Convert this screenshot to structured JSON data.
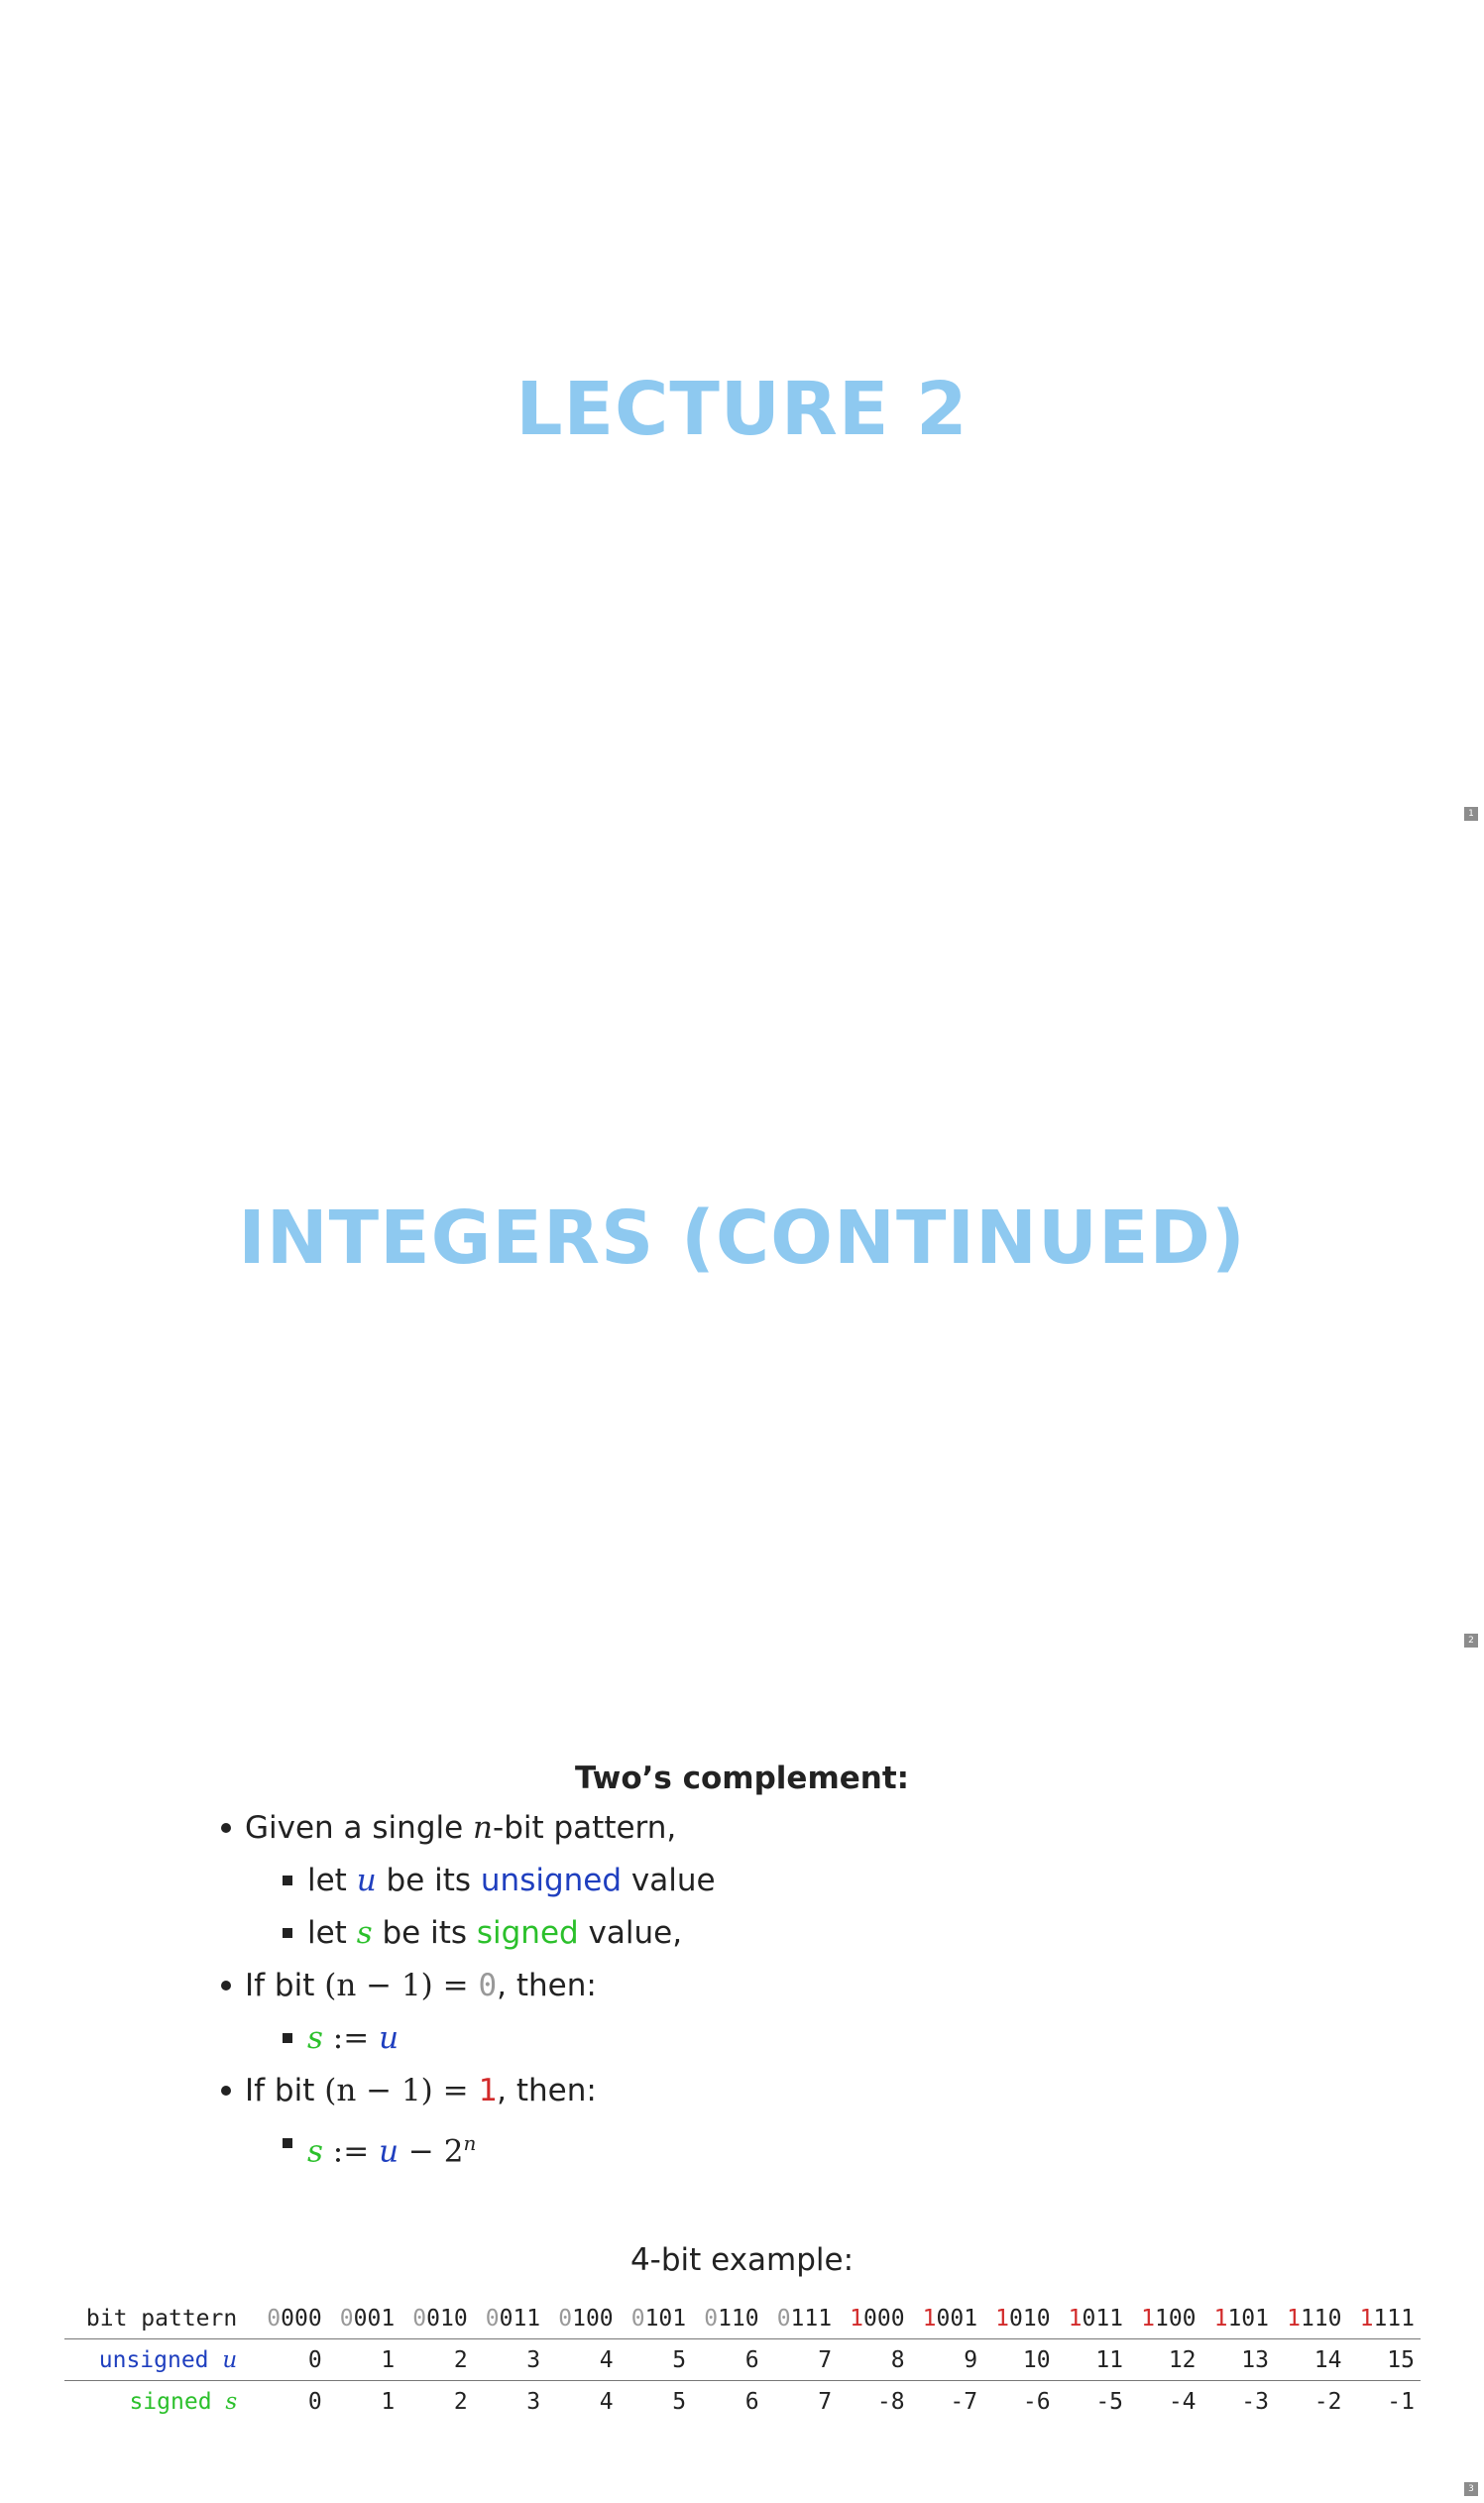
{
  "slides": [
    {
      "title": "LECTURE 2",
      "page": "1"
    },
    {
      "title": "INTEGERS (CONTINUED)",
      "page": "2"
    },
    {
      "page": "3"
    }
  ],
  "content": {
    "heading": "Two’s complement:",
    "b1_pre": "Given a single ",
    "b1_var": "n",
    "b1_post": "-bit pattern,",
    "b1a_pre": "let ",
    "b1a_var": "u",
    "b1a_mid": " be its ",
    "b1a_word": "unsigned",
    "b1a_post": " value",
    "b1b_pre": "let ",
    "b1b_var": "s",
    "b1b_mid": " be its ",
    "b1b_word": "signed",
    "b1b_post": " value,",
    "b2_pre": "If bit ",
    "b2_math": "(n − 1) = ",
    "b2_bit": "0",
    "b2_post": ", then:",
    "b2a_s": "s",
    "b2a_op": " := ",
    "b2a_u": "u",
    "b3_pre": "If bit ",
    "b3_math": "(n − 1) = ",
    "b3_bit": "1",
    "b3_post": ", then:",
    "b3a_s": "s",
    "b3a_op": " := ",
    "b3a_u": "u",
    "b3a_minus": " − 2",
    "b3a_exp": "n"
  },
  "example": {
    "title": "4-bit example:",
    "row_labels": {
      "bits": "bit pattern",
      "unsigned": "unsigned",
      "unsigned_var": "u",
      "signed": "signed",
      "signed_var": "s"
    },
    "patterns": [
      {
        "msb": "0",
        "rest": "000"
      },
      {
        "msb": "0",
        "rest": "001"
      },
      {
        "msb": "0",
        "rest": "010"
      },
      {
        "msb": "0",
        "rest": "011"
      },
      {
        "msb": "0",
        "rest": "100"
      },
      {
        "msb": "0",
        "rest": "101"
      },
      {
        "msb": "0",
        "rest": "110"
      },
      {
        "msb": "0",
        "rest": "111"
      },
      {
        "msb": "1",
        "rest": "000"
      },
      {
        "msb": "1",
        "rest": "001"
      },
      {
        "msb": "1",
        "rest": "010"
      },
      {
        "msb": "1",
        "rest": "011"
      },
      {
        "msb": "1",
        "rest": "100"
      },
      {
        "msb": "1",
        "rest": "101"
      },
      {
        "msb": "1",
        "rest": "110"
      },
      {
        "msb": "1",
        "rest": "111"
      }
    ],
    "unsigned": [
      "0",
      "1",
      "2",
      "3",
      "4",
      "5",
      "6",
      "7",
      "8",
      "9",
      "10",
      "11",
      "12",
      "13",
      "14",
      "15"
    ],
    "signed": [
      "0",
      "1",
      "2",
      "3",
      "4",
      "5",
      "6",
      "7",
      "-8",
      "-7",
      "-6",
      "-5",
      "-4",
      "-3",
      "-2",
      "-1"
    ]
  },
  "colors": {
    "title": "#8ec9f0",
    "unsigned": "#1f3fbf",
    "signed": "#2bc02b",
    "msb_one": "#d22a2a",
    "msb_zero": "#999999"
  }
}
